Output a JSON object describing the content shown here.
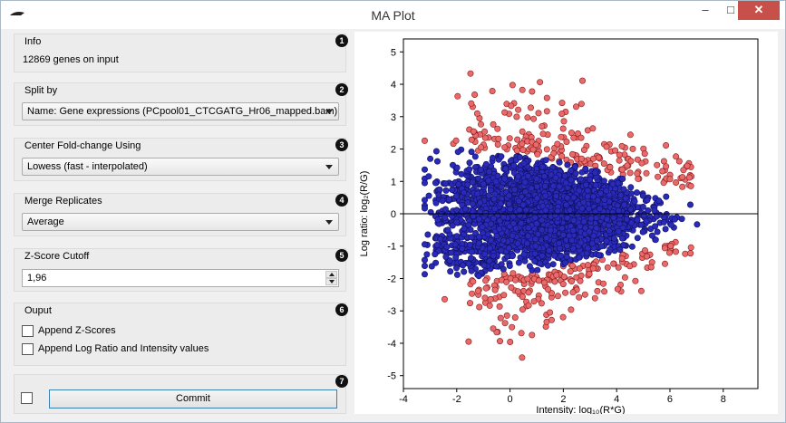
{
  "window": {
    "title": "MA Plot",
    "minimize": "–",
    "maximize": "□",
    "close": "✕"
  },
  "info": {
    "title": "Info",
    "number": "1",
    "text": "12869 genes on input"
  },
  "split_by": {
    "title": "Split by",
    "number": "2",
    "selected": "Name: Gene expressions (PCpool01_CTCGATG_Hr06_mapped.bam)"
  },
  "center": {
    "title": "Center Fold-change Using",
    "number": "3",
    "selected": "Lowess (fast - interpolated)"
  },
  "merge": {
    "title": "Merge Replicates",
    "number": "4",
    "selected": "Average"
  },
  "zscore": {
    "title": "Z-Score Cutoff",
    "number": "5",
    "value": "1,96"
  },
  "output": {
    "title": "Ouput",
    "number": "6",
    "append_z": "Append Z-Scores",
    "append_log": "Append Log Ratio and Intensity values"
  },
  "commit": {
    "number": "7",
    "label": "Commit"
  },
  "colors": {
    "inlier": "#2a2ab8",
    "outlier": "#e86a6a",
    "outlier_edge": "#8a1a1a",
    "inlier_edge": "#101060"
  },
  "chart_data": {
    "type": "scatter",
    "xlabel": "Intensity: log₁₀(R*G)",
    "ylabel": "Log ratio: log₂(R/G)",
    "xlim": [
      -4,
      9.3
    ],
    "ylim": [
      -5.4,
      5.4
    ],
    "x_ticks": [
      "-4",
      "-2",
      "0",
      "2",
      "4",
      "6",
      "8"
    ],
    "y_ticks": [
      "5",
      "4",
      "3",
      "2",
      "1",
      "0",
      "-1",
      "-2",
      "-3",
      "-4",
      "-5"
    ],
    "reference_line": 0,
    "series": [
      {
        "role": "inlier",
        "points": 12869
      },
      {
        "role": "outlier"
      }
    ]
  }
}
